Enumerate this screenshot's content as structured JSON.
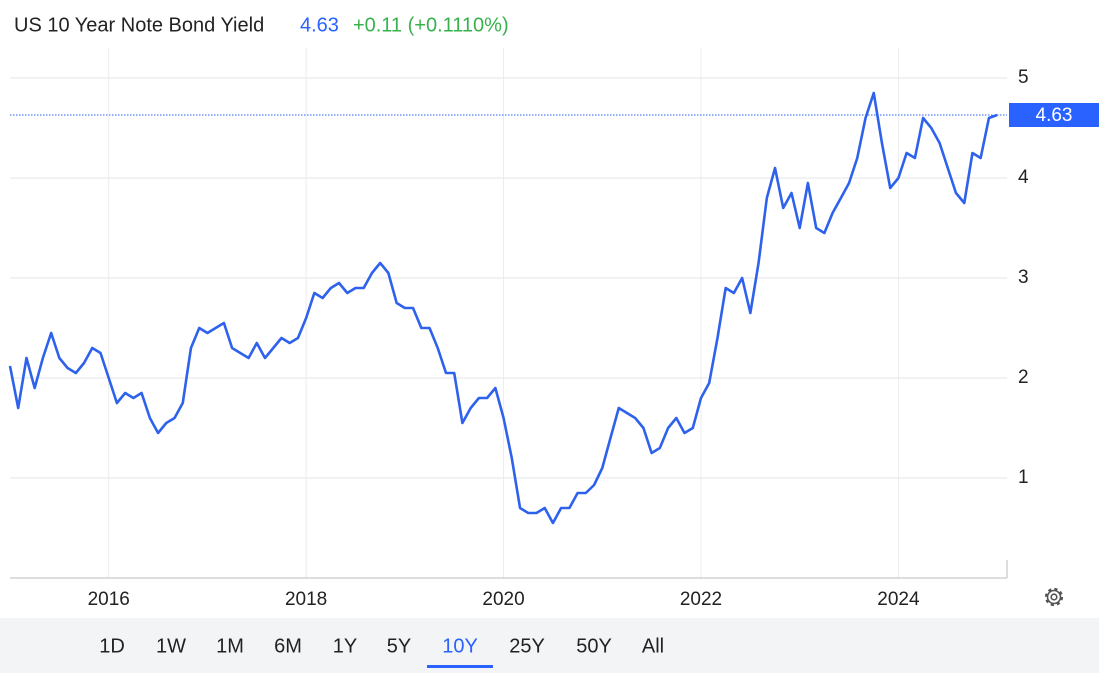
{
  "chart_data": {
    "type": "line",
    "title": "US 10 Year Note Bond Yield",
    "price": 4.63,
    "change": "+0.11 (+0.1110%)",
    "x": [
      2015,
      2015.083,
      2015.167,
      2015.25,
      2015.333,
      2015.417,
      2015.5,
      2015.583,
      2015.667,
      2015.75,
      2015.833,
      2015.917,
      2016,
      2016.083,
      2016.167,
      2016.25,
      2016.333,
      2016.417,
      2016.5,
      2016.583,
      2016.667,
      2016.75,
      2016.833,
      2016.917,
      2017,
      2017.083,
      2017.167,
      2017.25,
      2017.333,
      2017.417,
      2017.5,
      2017.583,
      2017.667,
      2017.75,
      2017.833,
      2017.917,
      2018,
      2018.083,
      2018.167,
      2018.25,
      2018.333,
      2018.417,
      2018.5,
      2018.583,
      2018.667,
      2018.75,
      2018.833,
      2018.917,
      2019,
      2019.083,
      2019.167,
      2019.25,
      2019.333,
      2019.417,
      2019.5,
      2019.583,
      2019.667,
      2019.75,
      2019.833,
      2019.917,
      2020,
      2020.083,
      2020.167,
      2020.25,
      2020.333,
      2020.417,
      2020.5,
      2020.583,
      2020.667,
      2020.75,
      2020.833,
      2020.917,
      2021,
      2021.083,
      2021.167,
      2021.25,
      2021.333,
      2021.417,
      2021.5,
      2021.583,
      2021.667,
      2021.75,
      2021.833,
      2021.917,
      2022,
      2022.083,
      2022.167,
      2022.25,
      2022.333,
      2022.417,
      2022.5,
      2022.583,
      2022.667,
      2022.75,
      2022.833,
      2022.917,
      2023,
      2023.083,
      2023.167,
      2023.25,
      2023.333,
      2023.417,
      2023.5,
      2023.583,
      2023.667,
      2023.75,
      2023.833,
      2023.917,
      2024,
      2024.083,
      2024.167,
      2024.25,
      2024.333,
      2024.417,
      2024.5,
      2024.583,
      2024.667,
      2024.75,
      2024.833,
      2024.917,
      2025
    ],
    "series": [
      {
        "color": "#2e62ec",
        "values": [
          2.12,
          1.7,
          2.2,
          1.9,
          2.2,
          2.45,
          2.2,
          2.1,
          2.05,
          2.15,
          2.3,
          2.25,
          2.0,
          1.75,
          1.85,
          1.8,
          1.85,
          1.6,
          1.45,
          1.55,
          1.6,
          1.75,
          2.3,
          2.5,
          2.45,
          2.5,
          2.55,
          2.3,
          2.25,
          2.2,
          2.35,
          2.2,
          2.3,
          2.4,
          2.35,
          2.4,
          2.6,
          2.85,
          2.8,
          2.9,
          2.95,
          2.85,
          2.9,
          2.9,
          3.05,
          3.15,
          3.05,
          2.75,
          2.7,
          2.7,
          2.5,
          2.5,
          2.3,
          2.05,
          2.05,
          1.55,
          1.7,
          1.8,
          1.8,
          1.9,
          1.6,
          1.2,
          0.7,
          0.65,
          0.65,
          0.7,
          0.55,
          0.7,
          0.7,
          0.85,
          0.85,
          0.93,
          1.1,
          1.4,
          1.7,
          1.65,
          1.6,
          1.5,
          1.25,
          1.3,
          1.5,
          1.6,
          1.45,
          1.5,
          1.8,
          1.95,
          2.4,
          2.9,
          2.85,
          3.0,
          2.65,
          3.15,
          3.8,
          4.1,
          3.7,
          3.85,
          3.5,
          3.95,
          3.5,
          3.45,
          3.65,
          3.8,
          3.95,
          4.2,
          4.6,
          4.85,
          4.35,
          3.9,
          4.0,
          4.25,
          4.2,
          4.6,
          4.5,
          4.35,
          4.1,
          3.85,
          3.75,
          4.25,
          4.2,
          4.6,
          4.63
        ]
      }
    ],
    "xlim": [
      2015,
      2025.1
    ],
    "xticks": [
      2016,
      2018,
      2020,
      2022,
      2024
    ],
    "ylim": [
      0,
      5.3
    ],
    "yticks": [
      1,
      2,
      3,
      4,
      5
    ],
    "grid": true,
    "ranges": [
      "1D",
      "1W",
      "1M",
      "6M",
      "1Y",
      "5Y",
      "10Y",
      "25Y",
      "50Y",
      "All"
    ],
    "selected_range": "10Y"
  }
}
